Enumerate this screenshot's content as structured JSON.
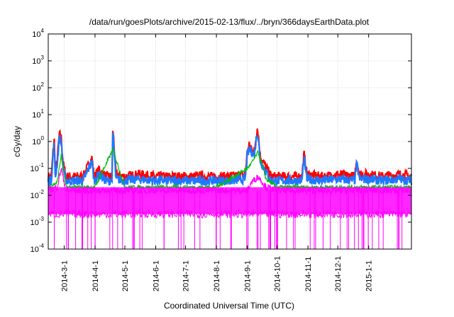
{
  "chart_data": {
    "type": "line",
    "title": "/data/run/goesPlots/archive/2015-02-13/flux/../bryn/366daysEarthData.plot",
    "xlabel": "Coordinated Universal Time (UTC)",
    "ylabel": "cGy/day",
    "yscale": "log",
    "ylim": [
      0.0001,
      10000
    ],
    "xlim": [
      "2014-02-13",
      "2015-02-13"
    ],
    "grid": true,
    "y_ticks": [
      {
        "base": "10",
        "exp": "-4",
        "value": 0.0001
      },
      {
        "base": "10",
        "exp": "-3",
        "value": 0.001
      },
      {
        "base": "10",
        "exp": "-2",
        "value": 0.01
      },
      {
        "base": "10",
        "exp": "-1",
        "value": 0.1
      },
      {
        "base": "10",
        "exp": "0",
        "value": 1
      },
      {
        "base": "10",
        "exp": "1",
        "value": 10
      },
      {
        "base": "10",
        "exp": "2",
        "value": 100
      },
      {
        "base": "10",
        "exp": "3",
        "value": 1000
      },
      {
        "base": "10",
        "exp": "4",
        "value": 10000
      }
    ],
    "x_ticks": [
      "2014-3-1",
      "2014-4-1",
      "2014-5-1",
      "2014-6-1",
      "2014-7-1",
      "2014-8-1",
      "2014-9-1",
      "2014-10-1",
      "2014-11-1",
      "2014-12-1",
      "2015-1-1"
    ],
    "x_tick_dates": [
      "2014-03-01",
      "2014-04-01",
      "2014-05-01",
      "2014-06-01",
      "2014-07-01",
      "2014-08-01",
      "2014-09-01",
      "2014-10-01",
      "2014-11-01",
      "2014-12-01",
      "2015-01-01"
    ],
    "series": [
      {
        "color": "#ff0000",
        "x": [
          "2014-02-13",
          "2014-02-16",
          "2014-02-19",
          "2014-02-20",
          "2014-02-22",
          "2014-02-24",
          "2014-02-25",
          "2014-02-26",
          "2014-02-28",
          "2014-03-03",
          "2014-03-10",
          "2014-03-20",
          "2014-03-29",
          "2014-03-31",
          "2014-04-05",
          "2014-04-12",
          "2014-04-18",
          "2014-04-19",
          "2014-04-22",
          "2014-05-01",
          "2014-05-15",
          "2014-06-01",
          "2014-06-15",
          "2014-07-01",
          "2014-07-15",
          "2014-08-01",
          "2014-08-15",
          "2014-08-30",
          "2014-09-01",
          "2014-09-03",
          "2014-09-05",
          "2014-09-08",
          "2014-09-11",
          "2014-09-12",
          "2014-09-14",
          "2014-09-18",
          "2014-09-25",
          "2014-10-05",
          "2014-10-15",
          "2014-10-26",
          "2014-10-28",
          "2014-10-31",
          "2014-11-15",
          "2014-12-01",
          "2014-12-18",
          "2014-12-20",
          "2014-12-23",
          "2015-01-01",
          "2015-01-15",
          "2015-02-01",
          "2015-02-13"
        ],
        "values": [
          0.05,
          0.05,
          1.4,
          0.06,
          0.2,
          1.6,
          1.8,
          1.4,
          0.15,
          0.05,
          0.05,
          0.05,
          0.25,
          0.05,
          0.09,
          0.05,
          0.05,
          3.3,
          0.06,
          0.05,
          0.06,
          0.05,
          0.05,
          0.05,
          0.05,
          0.05,
          0.05,
          0.06,
          0.4,
          0.7,
          0.6,
          0.4,
          3.2,
          2.0,
          0.3,
          0.15,
          0.05,
          0.05,
          0.05,
          0.05,
          0.35,
          0.06,
          0.05,
          0.06,
          0.05,
          0.2,
          0.06,
          0.06,
          0.05,
          0.06,
          0.05
        ]
      },
      {
        "color": "#1e78ff",
        "x": [
          "2014-02-13",
          "2014-02-16",
          "2014-02-19",
          "2014-02-20",
          "2014-02-22",
          "2014-02-24",
          "2014-02-25",
          "2014-02-26",
          "2014-02-28",
          "2014-03-03",
          "2014-03-10",
          "2014-03-20",
          "2014-03-29",
          "2014-03-31",
          "2014-04-05",
          "2014-04-12",
          "2014-04-18",
          "2014-04-19",
          "2014-04-22",
          "2014-05-01",
          "2014-05-15",
          "2014-06-01",
          "2014-06-15",
          "2014-07-01",
          "2014-07-15",
          "2014-08-01",
          "2014-08-15",
          "2014-08-30",
          "2014-09-01",
          "2014-09-03",
          "2014-09-05",
          "2014-09-08",
          "2014-09-11",
          "2014-09-12",
          "2014-09-14",
          "2014-09-18",
          "2014-09-25",
          "2014-10-05",
          "2014-10-15",
          "2014-10-26",
          "2014-10-28",
          "2014-10-31",
          "2014-11-15",
          "2014-12-01",
          "2014-12-18",
          "2014-12-20",
          "2014-12-23",
          "2015-01-01",
          "2015-01-15",
          "2015-02-01",
          "2015-02-13"
        ],
        "values": [
          0.035,
          0.035,
          1.0,
          0.04,
          0.15,
          1.2,
          1.3,
          1.0,
          0.1,
          0.035,
          0.035,
          0.035,
          0.18,
          0.035,
          0.06,
          0.035,
          0.035,
          2.2,
          0.04,
          0.035,
          0.04,
          0.035,
          0.035,
          0.035,
          0.035,
          0.035,
          0.035,
          0.04,
          0.3,
          0.5,
          0.45,
          0.3,
          2.4,
          1.5,
          0.2,
          0.1,
          0.035,
          0.035,
          0.035,
          0.035,
          0.25,
          0.04,
          0.035,
          0.04,
          0.035,
          0.14,
          0.04,
          0.04,
          0.035,
          0.04,
          0.035
        ]
      },
      {
        "color": "#00c000",
        "x": [
          "2014-02-13",
          "2014-02-22",
          "2014-02-26",
          "2014-03-03",
          "2014-04-01",
          "2014-04-19",
          "2014-05-01",
          "2014-06-01",
          "2014-07-01",
          "2014-08-01",
          "2014-09-01",
          "2014-09-05",
          "2014-09-12",
          "2014-09-20",
          "2014-10-01",
          "2014-11-01",
          "2014-12-01",
          "2015-01-01",
          "2015-02-13"
        ],
        "values": [
          0.02,
          0.03,
          0.3,
          0.02,
          0.02,
          0.5,
          0.02,
          0.02,
          0.02,
          0.02,
          0.1,
          0.15,
          0.4,
          0.04,
          0.02,
          0.02,
          0.02,
          0.02,
          0.02
        ]
      },
      {
        "color": "#ff00ff",
        "x": [
          "2014-02-13",
          "2014-02-22",
          "2014-02-26",
          "2014-03-03",
          "2014-04-01",
          "2014-05-01",
          "2014-06-01",
          "2014-07-01",
          "2014-08-01",
          "2014-09-01",
          "2014-09-05",
          "2014-09-12",
          "2014-09-20",
          "2014-10-01",
          "2014-11-01",
          "2014-12-01",
          "2015-01-01",
          "2015-02-13"
        ],
        "values": [
          0.015,
          0.02,
          0.1,
          0.015,
          0.015,
          0.015,
          0.015,
          0.015,
          0.015,
          0.015,
          0.03,
          0.05,
          0.02,
          0.015,
          0.015,
          0.015,
          0.015,
          0.015
        ]
      }
    ]
  }
}
